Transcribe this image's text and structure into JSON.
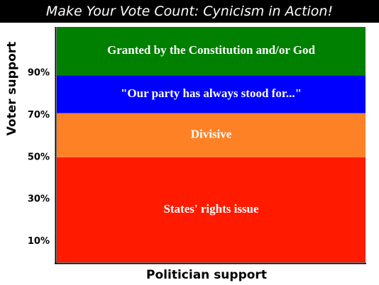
{
  "chart_data": {
    "type": "area",
    "title": "Make Your Vote Count: Cynicism in Action!",
    "xlabel": "Politician support",
    "ylabel": "Voter support",
    "ylim": [
      0,
      112
    ],
    "y_ticks": [
      10,
      30,
      50,
      70,
      90
    ],
    "y_tick_labels": [
      "10%",
      "30%",
      "50%",
      "70%",
      "90%"
    ],
    "bands": [
      {
        "label": "States' rights issue",
        "from": 0,
        "to": 50,
        "color": "#ff1a00"
      },
      {
        "label": "Divisive",
        "from": 50,
        "to": 71,
        "color": "#ff8126"
      },
      {
        "label": "\"Our party has always stood for...\"",
        "from": 71,
        "to": 89,
        "color": "#0000ff"
      },
      {
        "label": "Granted by the Constitution and/or God",
        "from": 89,
        "to": 112,
        "color": "#008000"
      }
    ],
    "grid": false,
    "legend": "none"
  }
}
